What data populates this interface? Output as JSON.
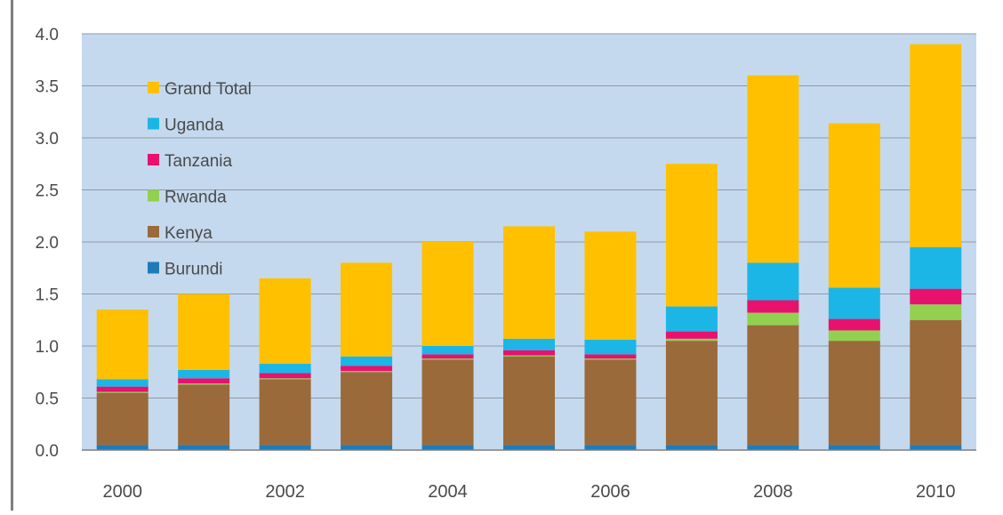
{
  "chart_data": {
    "type": "bar",
    "stacked": true,
    "title": "",
    "xlabel": "",
    "ylabel": "",
    "ylim": [
      0,
      4.0
    ],
    "yticks": [
      "0.0",
      "0.5",
      "1.0",
      "1.5",
      "2.0",
      "2.5",
      "3.0",
      "3.5",
      "4.0"
    ],
    "grid": true,
    "legend_position": "top-left",
    "categories": [
      "2000",
      "2001",
      "2002",
      "2003",
      "2004",
      "2005",
      "2006",
      "2007",
      "2008",
      "2009",
      "2010"
    ],
    "x_tick_labels": [
      "2000",
      "2002",
      "2004",
      "2006",
      "2008",
      "2010"
    ],
    "series": [
      {
        "name": "Burundi",
        "color": "#1f7bb8",
        "values": [
          0.05,
          0.05,
          0.05,
          0.05,
          0.05,
          0.05,
          0.05,
          0.05,
          0.05,
          0.05,
          0.05
        ]
      },
      {
        "name": "Kenya",
        "color": "#9b6a3a",
        "values": [
          0.5,
          0.58,
          0.63,
          0.7,
          0.82,
          0.85,
          0.82,
          1.0,
          1.15,
          1.0,
          1.2
        ]
      },
      {
        "name": "Rwanda",
        "color": "#92d050",
        "values": [
          0.01,
          0.01,
          0.01,
          0.01,
          0.01,
          0.01,
          0.01,
          0.02,
          0.12,
          0.1,
          0.15
        ]
      },
      {
        "name": "Tanzania",
        "color": "#e8116e",
        "values": [
          0.05,
          0.05,
          0.05,
          0.05,
          0.04,
          0.05,
          0.04,
          0.07,
          0.12,
          0.11,
          0.15
        ]
      },
      {
        "name": "Uganda",
        "color": "#1cb6e6",
        "values": [
          0.07,
          0.08,
          0.09,
          0.09,
          0.08,
          0.11,
          0.14,
          0.24,
          0.36,
          0.3,
          0.4
        ]
      },
      {
        "name": "Grand Total",
        "color": "#ffc000",
        "values": [
          0.67,
          0.73,
          0.82,
          0.9,
          1.0,
          1.08,
          1.04,
          1.37,
          1.8,
          1.58,
          1.95
        ]
      }
    ],
    "legend_order": [
      "Grand Total",
      "Uganda",
      "Tanzania",
      "Rwanda",
      "Kenya",
      "Burundi"
    ],
    "plot_background": "#c5d9ee",
    "grid_color": "#8e9aa8"
  }
}
